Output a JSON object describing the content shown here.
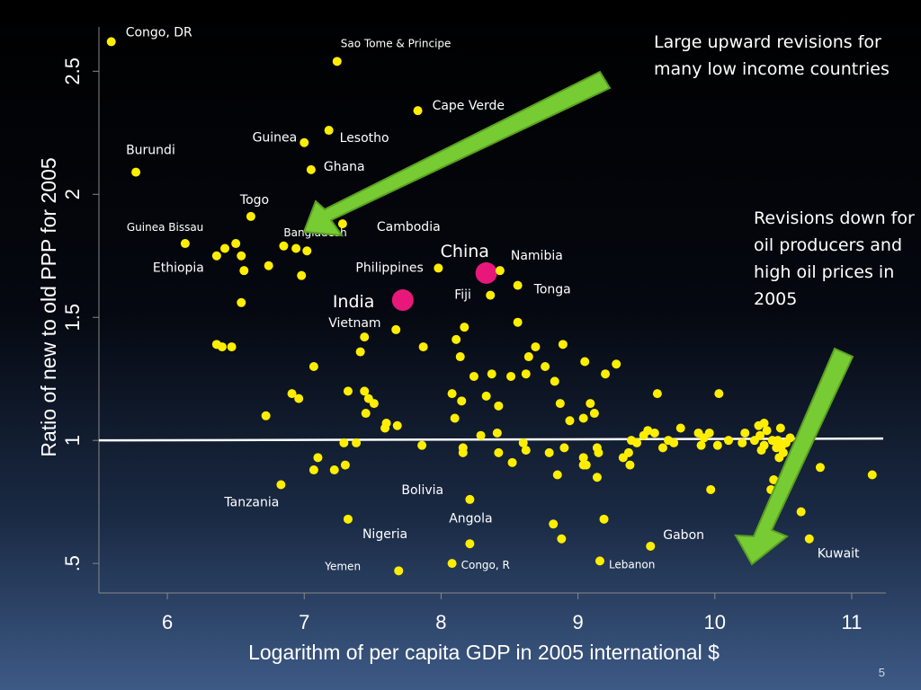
{
  "slide": {
    "number": "5"
  },
  "annotations": {
    "upward": "Large upward revisions for many low income countries",
    "downward": "Revisions down for oil producers and high oil prices in 2005"
  },
  "colors": {
    "background_top": "#000000",
    "background_bottom": "#3d5a86",
    "point": "#ffee00",
    "highlight": "#e8187a",
    "arrow": "#77cc33",
    "reference_line": "#ffffff"
  },
  "chart_data": {
    "type": "scatter",
    "xlabel": "Logarithm of per capita GDP in 2005 international $",
    "ylabel": "Ratio of new to old PPP for 2005",
    "xlim": [
      5.5,
      11.25
    ],
    "ylim": [
      0.38,
      2.68
    ],
    "xticks": [
      6,
      7,
      8,
      9,
      10,
      11
    ],
    "xtick_labels": [
      "6",
      "7",
      "8",
      "9",
      "10",
      "11"
    ],
    "yticks": [
      0.5,
      1,
      1.5,
      2,
      2.5
    ],
    "ytick_labels": [
      ".5",
      "1",
      "1.5",
      "2",
      "2.5"
    ],
    "reference_line": {
      "y": 1
    },
    "labeled_points": [
      {
        "label": "Congo, DR",
        "x": 5.59,
        "y": 2.62
      },
      {
        "label": "Sao Tome & Principe",
        "x": 7.24,
        "y": 2.54
      },
      {
        "label": "Cape Verde",
        "x": 7.83,
        "y": 2.34
      },
      {
        "label": "Lesotho",
        "x": 7.18,
        "y": 2.26
      },
      {
        "label": "Guinea",
        "x": 7.0,
        "y": 2.21
      },
      {
        "label": "Burundi",
        "x": 5.77,
        "y": 2.09
      },
      {
        "label": "Ghana",
        "x": 7.05,
        "y": 2.1
      },
      {
        "label": "Togo",
        "x": 6.61,
        "y": 1.91
      },
      {
        "label": "Cambodia",
        "x": 7.28,
        "y": 1.88
      },
      {
        "label": "Bangladesh",
        "x": 6.85,
        "y": 1.79
      },
      {
        "label": "Guinea Bissau",
        "x": 6.13,
        "y": 1.8
      },
      {
        "label": "Ethiopia",
        "x": 6.36,
        "y": 1.75
      },
      {
        "label": "Philippines",
        "x": 7.98,
        "y": 1.7
      },
      {
        "label": "China",
        "x": 8.33,
        "y": 1.68
      },
      {
        "label": "Namibia",
        "x": 8.43,
        "y": 1.69
      },
      {
        "label": "Fiji",
        "x": 8.36,
        "y": 1.59
      },
      {
        "label": "Tonga",
        "x": 8.56,
        "y": 1.63
      },
      {
        "label": "India",
        "x": 7.72,
        "y": 1.57
      },
      {
        "label": "Vietnam",
        "x": 7.67,
        "y": 1.45
      },
      {
        "label": "Tanzania",
        "x": 6.83,
        "y": 0.82
      },
      {
        "label": "Bolivia",
        "x": 8.21,
        "y": 0.76
      },
      {
        "label": "Angola",
        "x": 8.82,
        "y": 0.66
      },
      {
        "label": "Nigeria",
        "x": 7.32,
        "y": 0.68
      },
      {
        "label": "Gabon",
        "x": 9.53,
        "y": 0.57
      },
      {
        "label": "Kuwait",
        "x": 10.69,
        "y": 0.6
      },
      {
        "label": "Yemen",
        "x": 7.69,
        "y": 0.47
      },
      {
        "label": "Congo, R",
        "x": 8.08,
        "y": 0.5
      },
      {
        "label": "Lebanon",
        "x": 9.16,
        "y": 0.51
      }
    ],
    "highlighted": [
      "China",
      "India"
    ],
    "points": [
      [
        6.42,
        1.78
      ],
      [
        6.5,
        1.8
      ],
      [
        6.54,
        1.75
      ],
      [
        6.56,
        1.69
      ],
      [
        6.74,
        1.71
      ],
      [
        6.94,
        1.78
      ],
      [
        7.02,
        1.77
      ],
      [
        6.98,
        1.67
      ],
      [
        6.54,
        1.56
      ],
      [
        6.36,
        1.39
      ],
      [
        6.4,
        1.38
      ],
      [
        6.47,
        1.38
      ],
      [
        7.44,
        1.42
      ],
      [
        7.41,
        1.36
      ],
      [
        7.87,
        1.38
      ],
      [
        8.11,
        1.41
      ],
      [
        8.17,
        1.46
      ],
      [
        8.56,
        1.48
      ],
      [
        8.69,
        1.38
      ],
      [
        8.89,
        1.39
      ],
      [
        8.64,
        1.34
      ],
      [
        8.14,
        1.34
      ],
      [
        7.07,
        1.3
      ],
      [
        8.76,
        1.3
      ],
      [
        9.05,
        1.32
      ],
      [
        9.28,
        1.31
      ],
      [
        8.37,
        1.27
      ],
      [
        8.62,
        1.27
      ],
      [
        8.83,
        1.24
      ],
      [
        8.51,
        1.26
      ],
      [
        8.24,
        1.26
      ],
      [
        9.2,
        1.27
      ],
      [
        6.91,
        1.19
      ],
      [
        6.96,
        1.17
      ],
      [
        7.32,
        1.2
      ],
      [
        7.44,
        1.2
      ],
      [
        7.47,
        1.17
      ],
      [
        7.51,
        1.15
      ],
      [
        8.08,
        1.19
      ],
      [
        8.15,
        1.16
      ],
      [
        8.33,
        1.18
      ],
      [
        8.42,
        1.14
      ],
      [
        8.87,
        1.15
      ],
      [
        9.09,
        1.15
      ],
      [
        9.12,
        1.11
      ],
      [
        9.04,
        1.09
      ],
      [
        8.94,
        1.08
      ],
      [
        9.58,
        1.19
      ],
      [
        10.03,
        1.19
      ],
      [
        6.72,
        1.1
      ],
      [
        7.45,
        1.11
      ],
      [
        7.6,
        1.07
      ],
      [
        7.68,
        1.06
      ],
      [
        7.59,
        1.05
      ],
      [
        8.1,
        1.09
      ],
      [
        7.1,
        0.93
      ],
      [
        7.07,
        0.88
      ],
      [
        7.22,
        0.88
      ],
      [
        7.3,
        0.9
      ],
      [
        7.29,
        0.99
      ],
      [
        7.38,
        0.99
      ],
      [
        7.86,
        0.98
      ],
      [
        8.16,
        0.97
      ],
      [
        8.16,
        0.95
      ],
      [
        8.29,
        1.02
      ],
      [
        8.41,
        1.03
      ],
      [
        8.42,
        0.95
      ],
      [
        8.52,
        0.91
      ],
      [
        8.6,
        0.99
      ],
      [
        8.62,
        0.96
      ],
      [
        8.79,
        0.95
      ],
      [
        8.85,
        0.86
      ],
      [
        8.9,
        0.97
      ],
      [
        9.04,
        0.93
      ],
      [
        9.06,
        0.9
      ],
      [
        9.04,
        0.9
      ],
      [
        9.14,
        0.97
      ],
      [
        9.15,
        0.95
      ],
      [
        9.14,
        0.85
      ],
      [
        9.33,
        0.93
      ],
      [
        9.37,
        0.95
      ],
      [
        9.39,
        1.0
      ],
      [
        9.43,
        0.99
      ],
      [
        9.38,
        0.9
      ],
      [
        9.48,
        1.02
      ],
      [
        9.51,
        1.04
      ],
      [
        9.56,
        1.03
      ],
      [
        9.62,
        0.97
      ],
      [
        9.66,
        1.0
      ],
      [
        9.7,
        0.99
      ],
      [
        9.75,
        1.05
      ],
      [
        9.88,
        1.03
      ],
      [
        9.9,
        0.98
      ],
      [
        9.92,
        1.01
      ],
      [
        9.96,
        1.03
      ],
      [
        10.02,
        0.98
      ],
      [
        10.1,
        1.0
      ],
      [
        10.2,
        0.99
      ],
      [
        10.22,
        1.03
      ],
      [
        10.29,
        1.0
      ],
      [
        10.32,
        1.06
      ],
      [
        10.33,
        1.02
      ],
      [
        10.36,
        0.98
      ],
      [
        10.38,
        1.04
      ],
      [
        10.36,
        1.07
      ],
      [
        10.42,
        1.0
      ],
      [
        10.45,
        0.97
      ],
      [
        10.46,
        1.0
      ],
      [
        10.48,
        1.05
      ],
      [
        10.49,
        0.98
      ],
      [
        10.52,
        0.99
      ],
      [
        10.55,
        1.01
      ],
      [
        10.47,
        0.93
      ],
      [
        10.43,
        0.84
      ],
      [
        10.5,
        0.95
      ],
      [
        10.41,
        0.8
      ],
      [
        10.34,
        0.96
      ],
      [
        10.77,
        0.89
      ],
      [
        11.15,
        0.86
      ],
      [
        10.63,
        0.71
      ],
      [
        9.97,
        0.8
      ],
      [
        9.19,
        0.68
      ],
      [
        8.88,
        0.6
      ],
      [
        8.21,
        0.58
      ]
    ]
  }
}
